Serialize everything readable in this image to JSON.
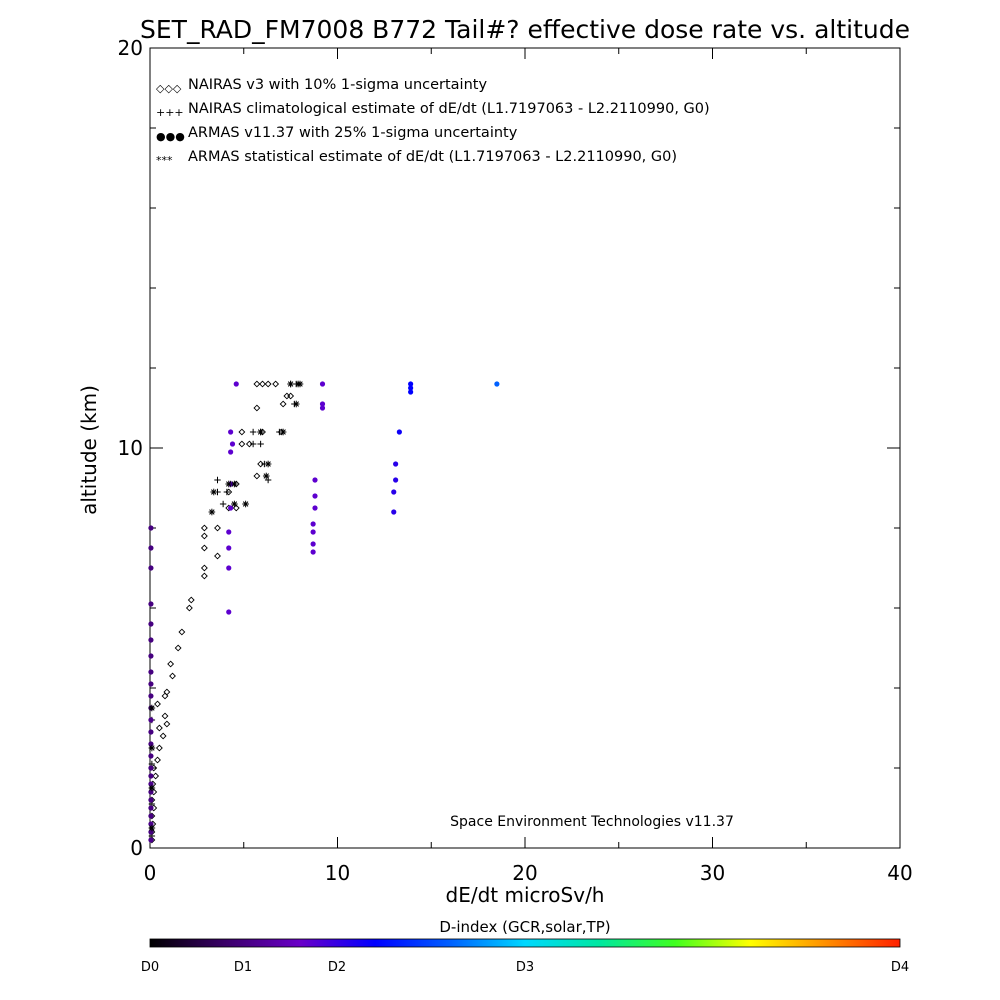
{
  "chart_data": {
    "type": "scatter",
    "title": "SET_RAD_FM7008  B772 Tail#? effective dose rate vs. altitude",
    "xlabel": "dE/dt microSv/h",
    "ylabel": "altitude (km)",
    "xlim": [
      0,
      40
    ],
    "ylim": [
      0,
      20
    ],
    "x_tick_labels": [
      "0",
      "10",
      "20",
      "30",
      "40"
    ],
    "y_tick_labels": [
      "0",
      "10",
      "20"
    ],
    "legend_position": "top-left",
    "annotation": "Space Environment Technologies v11.37",
    "colorbar": {
      "title": "D-index (GCR,solar,TP)",
      "tick_labels": [
        "D0",
        "D1",
        "D2",
        "D3",
        "D4"
      ],
      "stops": [
        "#000000",
        "#3a0068",
        "#6a00c8",
        "#0000ff",
        "#0060ff",
        "#00d8ff",
        "#00e8a0",
        "#40ff20",
        "#ffff00",
        "#ff9000",
        "#ff2000"
      ]
    },
    "series": [
      {
        "name": "NAIRAS v3 with 10% 1-sigma uncertainty",
        "marker": "diamond",
        "legend_glyph": "◇◇◇",
        "color": "#000000",
        "points": [
          [
            0.1,
            0.2
          ],
          [
            0.1,
            0.4
          ],
          [
            0.15,
            0.6
          ],
          [
            0.1,
            0.8
          ],
          [
            0.2,
            1.0
          ],
          [
            0.1,
            1.2
          ],
          [
            0.2,
            1.4
          ],
          [
            0.15,
            1.6
          ],
          [
            0.3,
            1.8
          ],
          [
            0.2,
            2.0
          ],
          [
            0.4,
            2.2
          ],
          [
            0.5,
            2.5
          ],
          [
            0.7,
            2.8
          ],
          [
            0.5,
            3.0
          ],
          [
            0.9,
            3.1
          ],
          [
            0.8,
            3.3
          ],
          [
            0.4,
            3.6
          ],
          [
            0.8,
            3.8
          ],
          [
            0.9,
            3.9
          ],
          [
            1.2,
            4.3
          ],
          [
            1.1,
            4.6
          ],
          [
            1.5,
            5.0
          ],
          [
            1.7,
            5.4
          ],
          [
            2.1,
            6.0
          ],
          [
            2.2,
            6.2
          ],
          [
            2.9,
            6.8
          ],
          [
            2.9,
            7.0
          ],
          [
            3.6,
            7.3
          ],
          [
            2.9,
            7.5
          ],
          [
            2.9,
            7.8
          ],
          [
            3.6,
            8.0
          ],
          [
            2.9,
            8.0
          ],
          [
            4.2,
            8.5
          ],
          [
            4.6,
            8.5
          ],
          [
            4.2,
            8.9
          ],
          [
            4.6,
            9.1
          ],
          [
            5.7,
            9.3
          ],
          [
            5.9,
            9.6
          ],
          [
            4.9,
            10.1
          ],
          [
            5.3,
            10.1
          ],
          [
            4.9,
            10.4
          ],
          [
            6.0,
            10.4
          ],
          [
            7.0,
            10.4
          ],
          [
            5.7,
            11.0
          ],
          [
            7.1,
            11.1
          ],
          [
            7.3,
            11.3
          ],
          [
            7.5,
            11.3
          ],
          [
            5.7,
            11.6
          ],
          [
            6.0,
            11.6
          ],
          [
            6.3,
            11.6
          ],
          [
            6.7,
            11.6
          ]
        ]
      },
      {
        "name": "NAIRAS climatological estimate of dE/dt (L1.7197063 - L2.2110990, G0)",
        "marker": "plus",
        "legend_glyph": "+++",
        "color": "#000000",
        "points": [
          [
            0.1,
            0.3
          ],
          [
            0.1,
            1.1
          ],
          [
            0.1,
            2.1
          ],
          [
            0.1,
            3.2
          ],
          [
            3.9,
            8.6
          ],
          [
            4.1,
            8.9
          ],
          [
            3.6,
            8.9
          ],
          [
            4.3,
            9.1
          ],
          [
            3.6,
            9.2
          ],
          [
            6.3,
            9.2
          ],
          [
            6.1,
            9.6
          ],
          [
            5.5,
            10.1
          ],
          [
            5.9,
            10.1
          ],
          [
            5.5,
            10.4
          ],
          [
            5.9,
            10.4
          ],
          [
            6.9,
            10.4
          ],
          [
            7.7,
            11.1
          ],
          [
            7.5,
            11.6
          ],
          [
            7.8,
            11.6
          ]
        ]
      },
      {
        "name": "ARMAS v11.37 with 25% 1-sigma uncertainty",
        "marker": "filled-circle",
        "legend_glyph": "●●●",
        "color": "#1a3ccc",
        "points": [
          [
            0.05,
            0.2,
            0.55
          ],
          [
            0.05,
            0.4,
            0.5
          ],
          [
            0.05,
            0.6,
            0.55
          ],
          [
            0.05,
            0.8,
            0.5
          ],
          [
            0.05,
            1.0,
            0.5
          ],
          [
            0.05,
            1.2,
            0.5
          ],
          [
            0.05,
            1.4,
            0.5
          ],
          [
            0.05,
            1.6,
            0.55
          ],
          [
            0.05,
            1.8,
            0.5
          ],
          [
            0.05,
            2.0,
            0.5
          ],
          [
            0.05,
            2.3,
            0.5
          ],
          [
            0.05,
            2.6,
            0.5
          ],
          [
            0.05,
            2.9,
            0.5
          ],
          [
            0.05,
            3.2,
            0.55
          ],
          [
            0.05,
            3.5,
            0.5
          ],
          [
            0.05,
            3.8,
            0.5
          ],
          [
            0.05,
            4.1,
            0.5
          ],
          [
            0.05,
            4.4,
            0.5
          ],
          [
            0.05,
            4.8,
            0.5
          ],
          [
            0.05,
            5.2,
            0.5
          ],
          [
            0.05,
            5.6,
            0.5
          ],
          [
            0.05,
            6.1,
            0.5
          ],
          [
            0.05,
            7.0,
            0.5
          ],
          [
            0.05,
            7.5,
            0.5
          ],
          [
            0.05,
            8.0,
            0.5
          ],
          [
            4.2,
            5.9,
            0.85
          ],
          [
            4.2,
            7.0,
            0.85
          ],
          [
            4.2,
            7.5,
            0.85
          ],
          [
            4.2,
            7.9,
            0.85
          ],
          [
            4.3,
            8.5,
            0.85
          ],
          [
            4.3,
            9.1,
            0.85
          ],
          [
            4.3,
            9.9,
            0.85
          ],
          [
            4.4,
            10.1,
            0.85
          ],
          [
            4.3,
            10.4,
            0.85
          ],
          [
            4.6,
            11.6,
            0.85
          ],
          [
            8.7,
            7.4,
            0.85
          ],
          [
            8.7,
            7.6,
            0.85
          ],
          [
            8.7,
            7.9,
            0.85
          ],
          [
            8.7,
            8.1,
            0.85
          ],
          [
            8.8,
            8.5,
            0.85
          ],
          [
            8.8,
            8.8,
            0.85
          ],
          [
            8.8,
            9.2,
            0.85
          ],
          [
            9.2,
            11.0,
            0.85
          ],
          [
            9.2,
            11.1,
            0.85
          ],
          [
            9.2,
            11.6,
            0.85
          ],
          [
            13.0,
            8.4,
            1.05
          ],
          [
            13.0,
            8.9,
            1.05
          ],
          [
            13.1,
            9.2,
            1.05
          ],
          [
            13.1,
            9.6,
            1.05
          ],
          [
            13.3,
            10.4,
            1.15
          ],
          [
            13.9,
            11.4,
            1.2
          ],
          [
            13.9,
            11.5,
            1.2
          ],
          [
            13.9,
            11.6,
            1.2
          ],
          [
            18.5,
            11.6,
            1.6
          ]
        ]
      },
      {
        "name": "ARMAS statistical estimate of dE/dt (L1.7197063 - L2.2110990, G0)",
        "marker": "asterisk",
        "legend_glyph": "***",
        "color": "#000000",
        "points": [
          [
            0.1,
            0.5
          ],
          [
            0.1,
            1.5
          ],
          [
            0.1,
            2.5
          ],
          [
            0.1,
            3.5
          ],
          [
            3.3,
            8.4
          ],
          [
            3.4,
            8.9
          ],
          [
            4.5,
            8.6
          ],
          [
            5.1,
            8.6
          ],
          [
            4.2,
            9.1
          ],
          [
            4.5,
            9.1
          ],
          [
            6.2,
            9.3
          ],
          [
            6.3,
            9.6
          ],
          [
            5.9,
            10.4
          ],
          [
            7.1,
            10.4
          ],
          [
            7.8,
            11.1
          ],
          [
            7.5,
            11.6
          ],
          [
            7.9,
            11.6
          ],
          [
            8.0,
            11.6
          ]
        ]
      }
    ]
  }
}
